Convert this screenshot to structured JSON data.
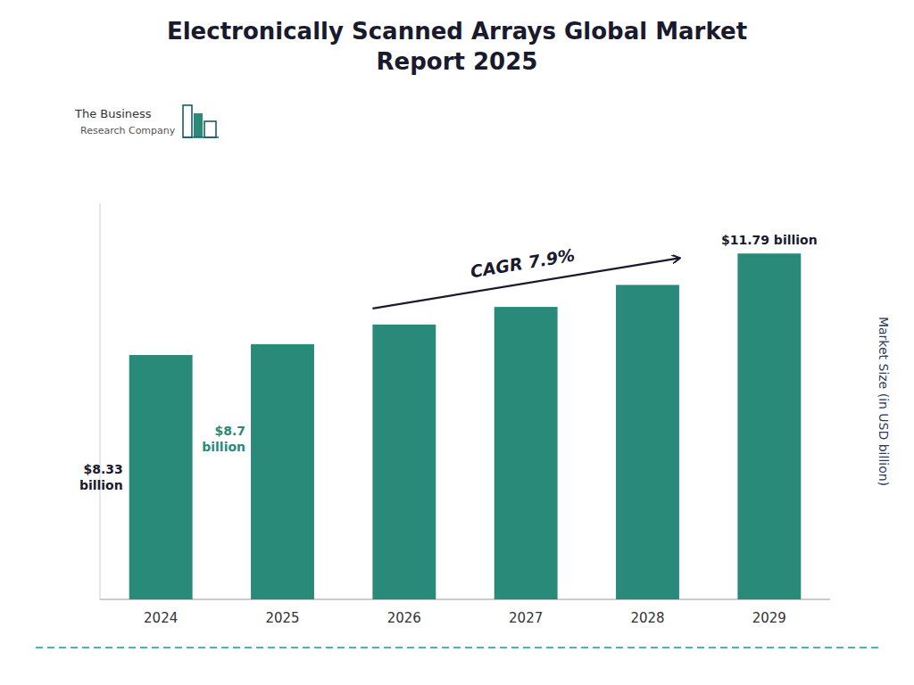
{
  "chart_data": {
    "type": "bar",
    "title": "Electronically Scanned Arrays Global Market\nReport 2025",
    "y_label": "Market Size (in USD billion)",
    "categories": [
      "2024",
      "2025",
      "2026",
      "2027",
      "2028",
      "2029"
    ],
    "values": [
      8.33,
      8.7,
      9.37,
      9.97,
      10.72,
      11.79
    ],
    "color": "#2a8a7a",
    "ylim": [
      0,
      13.5
    ],
    "tick_labels": "x",
    "grid": false,
    "annotations": [
      {
        "text": "$8.33\nbillion",
        "color": "#1a1a2e"
      },
      {
        "text": "$8.7\nbillion",
        "color": "#2a8a7a"
      },
      {
        "text": "$11.79 billion",
        "color": "#1a1a2e"
      },
      {
        "text": "CAGR 7.9%",
        "color": "#1a1a2e"
      },
      {
        "text": "The Business"
      },
      {
        "text": "Research Company"
      }
    ]
  }
}
